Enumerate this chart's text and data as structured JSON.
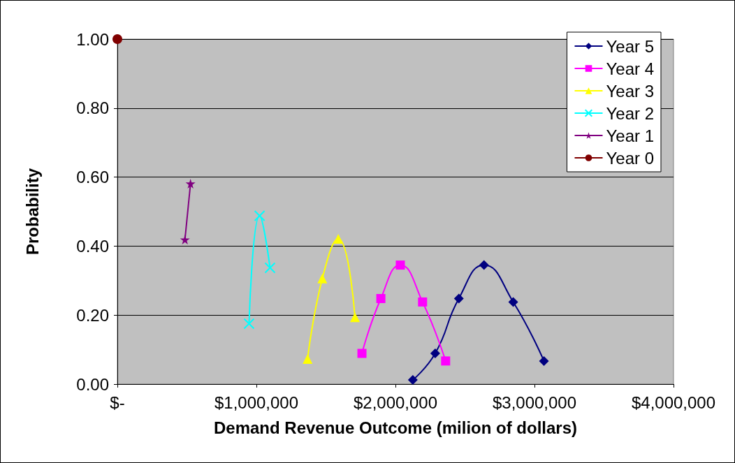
{
  "chart_data": {
    "type": "line",
    "xlabel": "Demand Revenue Outcome (milion of dollars)",
    "ylabel": "Probability",
    "xlim": [
      0,
      4000000
    ],
    "xticks": [
      {
        "value": 0,
        "label": "$-"
      },
      {
        "value": 1000000,
        "label": "$1,000,000"
      },
      {
        "value": 2000000,
        "label": "$2,000,000"
      },
      {
        "value": 3000000,
        "label": "$3,000,000"
      },
      {
        "value": 4000000,
        "label": "$4,000,000"
      }
    ],
    "ylim": [
      0,
      1
    ],
    "yticks": [
      {
        "value": 0,
        "label": "0.00"
      },
      {
        "value": 0.2,
        "label": "0.20"
      },
      {
        "value": 0.4,
        "label": "0.40"
      },
      {
        "value": 0.6,
        "label": "0.60"
      },
      {
        "value": 0.8,
        "label": "0.80"
      },
      {
        "value": 1,
        "label": "1.00"
      }
    ],
    "grid": "y",
    "legend": "top right",
    "line_style": "solid",
    "series": [
      {
        "name": "Year 5",
        "color": "#000080",
        "marker": "diamond",
        "x": [
          2125000,
          2286000,
          2456000,
          2637000,
          2847000,
          3068000
        ],
        "values": [
          0.012,
          0.089,
          0.248,
          0.345,
          0.238,
          0.067
        ]
      },
      {
        "name": "Year 4",
        "color": "#ff00ff",
        "marker": "square",
        "x": [
          1759000,
          1895000,
          2035000,
          2195000,
          2361000
        ],
        "values": [
          0.089,
          0.248,
          0.345,
          0.238,
          0.067
        ]
      },
      {
        "name": "Year 3",
        "color": "#ffff00",
        "marker": "triangle",
        "x": [
          1368000,
          1474000,
          1589000,
          1709000
        ],
        "values": [
          0.073,
          0.306,
          0.421,
          0.194
        ]
      },
      {
        "name": "Year 2",
        "color": "#00ffff",
        "marker": "cross",
        "x": [
          947000,
          1023000,
          1098000
        ],
        "values": [
          0.175,
          0.488,
          0.337
        ]
      },
      {
        "name": "Year 1",
        "color": "#800080",
        "marker": "star",
        "x": [
          486000,
          526000
        ],
        "values": [
          0.419,
          0.581
        ]
      },
      {
        "name": "Year 0",
        "color": "#800000",
        "marker": "circle",
        "x": [
          0
        ],
        "values": [
          1.0
        ]
      }
    ]
  }
}
